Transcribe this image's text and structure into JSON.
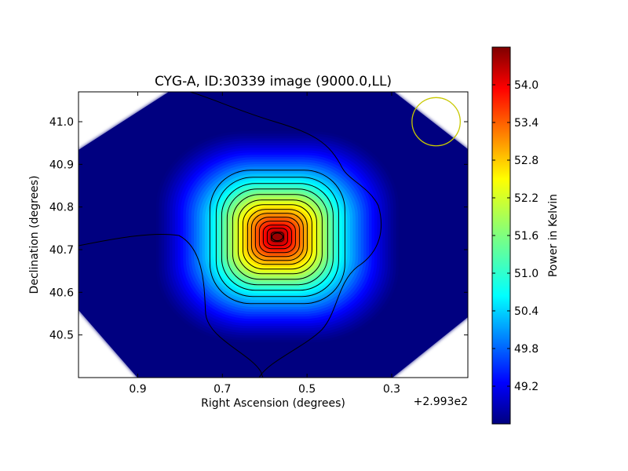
{
  "chart_data": {
    "type": "heatmap",
    "title": "CYG-A, ID:30339 image (9000.0,LL)",
    "xlabel": "Right Ascension (degrees)",
    "ylabel": "Declination (degrees)",
    "x_offset_label": "+2.993e2",
    "x_ticks": [
      0.9,
      0.7,
      0.5,
      0.3
    ],
    "x_tick_labels": [
      "0.9",
      "0.7",
      "0.5",
      "0.3"
    ],
    "y_ticks": [
      41.0,
      40.9,
      40.8,
      40.7,
      40.6,
      40.5
    ],
    "y_tick_labels": [
      "41.0",
      "40.9",
      "40.8",
      "40.7",
      "40.6",
      "40.5"
    ],
    "xlim": [
      1.04,
      0.12
    ],
    "ylim": [
      40.4,
      41.07
    ],
    "colorbar": {
      "label": "Power in Kelvin",
      "range": [
        48.6,
        54.6
      ],
      "ticks": [
        49.2,
        49.8,
        50.4,
        51.0,
        51.6,
        52.2,
        52.8,
        53.4,
        54.0
      ],
      "tick_labels": [
        "49.2",
        "49.8",
        "50.4",
        "51.0",
        "51.6",
        "52.2",
        "52.8",
        "53.4",
        "54.0"
      ],
      "colormap": "jet"
    },
    "peak": {
      "x": 0.57,
      "y": 40.73,
      "value": 54.6
    },
    "background_value": 48.6,
    "beam_circle": {
      "x": 0.195,
      "y": 41.0,
      "radius_deg": 0.057,
      "color": "#c8c800"
    },
    "colors": {
      "contour": "#000000",
      "outside": "#ffffff"
    }
  }
}
